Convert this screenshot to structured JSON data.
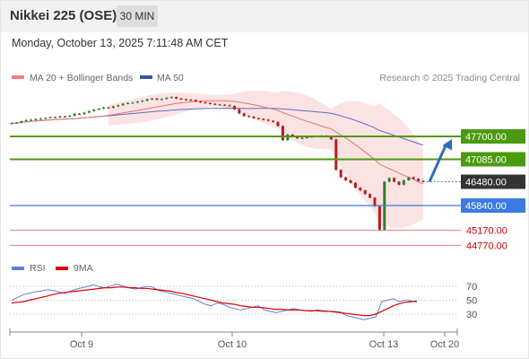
{
  "header": {
    "title": "Nikkei 225 (OSE)",
    "timeframe": "30 MIN",
    "datetime": "Monday, October 13, 2025 7:11:48 AM CET"
  },
  "legend": {
    "bollinger_label": "MA 20 + Bollinger Bands",
    "ma50_label": "MA 50",
    "source": "Research © 2025 Trading Central",
    "rsi_label": "RSI",
    "rsi_ma_label": "9MA"
  },
  "colors": {
    "candle": "#2e7d32",
    "candle_down": "#b71c1c",
    "bollinger_fill": "#fbdada",
    "ma20": "#e57373",
    "ma50": "#5c6bc0",
    "resistance": "#4c9a10",
    "pivot": "#333333",
    "support_blue": "#3b7be0",
    "support_red": "#e06666",
    "rsi": "#5b7fe0",
    "rsi_ma": "#e00000",
    "arrow": "#2e6db4"
  },
  "chart_data": {
    "type": "candlestick",
    "x_ticks": [
      "Oct 9",
      "Oct 10",
      "Oct 13",
      "Oct 20"
    ],
    "ylim": [
      44400,
      48800
    ],
    "levels": [
      {
        "value": 47700,
        "label": "47700.00",
        "kind": "resistance"
      },
      {
        "value": 47085,
        "label": "47085.00",
        "kind": "resistance"
      },
      {
        "value": 46480,
        "label": "46480.00",
        "kind": "pivot"
      },
      {
        "value": 45840,
        "label": "45840.00",
        "kind": "support"
      },
      {
        "value": 45170,
        "label": "45170.00",
        "kind": "support"
      },
      {
        "value": 44770,
        "label": "44770.00",
        "kind": "support"
      }
    ],
    "close": [
      48055,
      48070,
      48110,
      48140,
      48150,
      48170,
      48180,
      48200,
      48220,
      48210,
      48240,
      48230,
      48260,
      48310,
      48300,
      48340,
      48380,
      48420,
      48450,
      48480,
      48470,
      48510,
      48540,
      48580,
      48600,
      48610,
      48640,
      48660,
      48700,
      48720,
      48690,
      48710,
      48740,
      48760,
      48720,
      48700,
      48690,
      48680,
      48640,
      48620,
      48600,
      48580,
      48560,
      48550,
      48540,
      48520,
      48430,
      48320,
      48250,
      48230,
      48190,
      48170,
      48150,
      48120,
      48090,
      47980,
      47600,
      47750,
      47700,
      47650,
      47660,
      47680,
      47700,
      47710,
      47720,
      47700,
      47620,
      46800,
      46600,
      46520,
      46450,
      46320,
      46250,
      46150,
      46050,
      45820,
      45190,
      46480,
      46580,
      46480,
      46400,
      46520,
      46600,
      46560,
      46500,
      46480
    ],
    "rsi": {
      "levels": [
        70,
        50,
        30
      ],
      "rsi": [
        50,
        54,
        58,
        60,
        62,
        63,
        65,
        64,
        62,
        60,
        63,
        66,
        68,
        70,
        72,
        69,
        68,
        71,
        73,
        70,
        68,
        66,
        68,
        70,
        69,
        64,
        62,
        60,
        58,
        56,
        54,
        52,
        48,
        44,
        42,
        46,
        44,
        40,
        38,
        36,
        38,
        40,
        42,
        36,
        34,
        32,
        34,
        36,
        38,
        36,
        35,
        34,
        36,
        35,
        34,
        34,
        33,
        28,
        26,
        24,
        22,
        24,
        26,
        48,
        50,
        52,
        48,
        50,
        49,
        47
      ],
      "ma9": [
        46,
        47,
        48,
        50,
        52,
        54,
        56,
        58,
        60,
        61,
        62,
        63,
        64,
        65,
        66,
        67,
        68,
        68,
        69,
        69,
        68,
        68,
        67,
        67,
        66,
        65,
        64,
        63,
        61,
        60,
        58,
        56,
        54,
        52,
        50,
        48,
        46,
        45,
        44,
        42,
        41,
        40,
        40,
        39,
        38,
        37,
        37,
        36,
        36,
        36,
        35,
        35,
        35,
        34,
        34,
        33,
        32,
        31,
        30,
        29,
        28,
        28,
        30,
        34,
        38,
        42,
        45,
        47,
        48,
        49
      ]
    }
  }
}
